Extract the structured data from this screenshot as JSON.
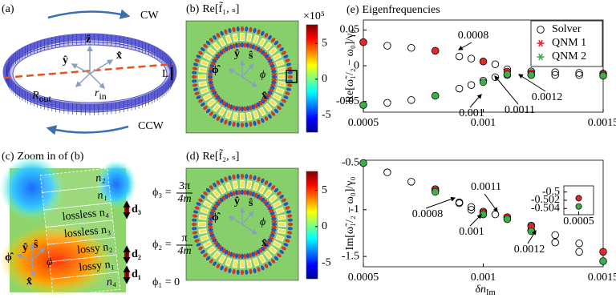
{
  "panel_a": {
    "label": "(a)",
    "cw": "CW",
    "ccw": "CCW",
    "l": "L",
    "z": "ẑ",
    "y": "ŷ",
    "x": "x̂",
    "r_out": "R",
    "r_out_sub": "out",
    "r_in": "r",
    "r_in_sub": "in"
  },
  "panel_b": {
    "label": "(b)",
    "title": "Re[f̃₁, ₛ]",
    "colorbar_exponent": "×10⁵",
    "colorbar_lim": [
      -7.4,
      7.6
    ],
    "colorbar_ticks": [
      5,
      0,
      -5
    ],
    "phi_hat": "ϕ̂",
    "y": "ŷ",
    "s": "ŝ",
    "phi": "ϕ",
    "x": "x̂"
  },
  "panel_c": {
    "label": "(c)",
    "title": "Zoom in of (b)",
    "layers": [
      "n₂",
      "n₁",
      "lossless n₄",
      "lossless n₃",
      "lossy n₂",
      "lossy n₁",
      "n₄"
    ],
    "phi3": "ϕ₃ =",
    "phi3_num": "3π",
    "phi3_den": "4m",
    "d3": "d₃",
    "phi2": "ϕ₂ =",
    "phi2_num": "π",
    "phi2_den": "4m",
    "d2": "d₂",
    "d1": "d₁",
    "phi1": "ϕ₁ = 0",
    "phi_hat": "ϕ̂",
    "y": "ŷ",
    "s": "ŝ",
    "phi": "ϕ",
    "x": "x̂"
  },
  "panel_d": {
    "label": "(d)",
    "title": "Re[f̃₂, ₛ]",
    "colorbar_lim": [
      -7.2,
      7.6
    ],
    "colorbar_ticks": [
      5,
      0,
      -5
    ],
    "phi_hat": "ϕ̂",
    "y": "ŷ",
    "s": "ŝ",
    "phi": "ϕ",
    "x": "x̂"
  },
  "panel_e": {
    "label": "(e)",
    "title": "Eigenfrequencies"
  },
  "chart_data": [
    {
      "type": "scatter",
      "y_label": "Re[ω̃₁/₂ − ω₀]/γ₀",
      "xlim": [
        0.0005,
        0.0015
      ],
      "xticks": [
        0.0005,
        0.001,
        0.0015
      ],
      "ylim": [
        -0.065,
        0.064
      ],
      "yticks": [
        0.05,
        0,
        -0.05
      ],
      "legend": "upper right",
      "series": [
        {
          "name": "Solver",
          "color": "#000000",
          "marker": "open",
          "x": [
            0.0005,
            0.0006,
            0.0007,
            0.0008,
            0.0009,
            0.00095,
            0.001,
            0.00105,
            0.0011,
            0.0012,
            0.0013,
            0.0014,
            0.0015,
            0.0005,
            0.0006,
            0.0007,
            0.0008,
            0.0009,
            0.00095,
            0.001,
            0.00105,
            0.0011,
            0.0012,
            0.0013,
            0.0014,
            0.0015
          ],
          "values": [
            0.033,
            0.028,
            0.025,
            0.021,
            0.013,
            0.01,
            0.006,
            0.002,
            -0.005,
            -0.008,
            -0.009,
            -0.01,
            -0.011,
            -0.055,
            -0.052,
            -0.048,
            -0.042,
            -0.032,
            -0.027,
            -0.021,
            -0.016,
            -0.013,
            -0.013,
            -0.013,
            -0.013,
            -0.014
          ]
        },
        {
          "name": "QNM 1",
          "color": "#e8262a",
          "marker": "filled",
          "x": [
            0.0005,
            0.0008,
            0.001,
            0.0011,
            0.0012,
            0.0015
          ],
          "values": [
            0.033,
            0.021,
            0.006,
            -0.008,
            -0.01,
            -0.012
          ]
        },
        {
          "name": "QNM 2",
          "color": "#3cae4a",
          "marker": "filled",
          "x": [
            0.0005,
            0.0008,
            0.001,
            0.0011,
            0.0012,
            0.0015
          ],
          "values": [
            -0.055,
            -0.042,
            -0.023,
            -0.012,
            -0.013,
            -0.014
          ]
        }
      ],
      "annotations": [
        "0.0008",
        "0.001",
        "0.0011",
        "0.0012"
      ]
    },
    {
      "type": "scatter",
      "y_label": "Im[ω̃₁/₂ − ω₀]/γ₀",
      "x_label": "δn",
      "x_label_sub": "Im",
      "xlim": [
        0.0005,
        0.0015
      ],
      "xticks": [
        0.0005,
        0.001,
        0.0015
      ],
      "ylim": [
        -1.61,
        -0.47
      ],
      "yticks": [
        -0.5,
        -1,
        -1.5
      ],
      "series": [
        {
          "color": "#000000",
          "marker": "open",
          "x": [
            0.0005,
            0.0006,
            0.0007,
            0.0008,
            0.0009,
            0.00095,
            0.001,
            0.00105,
            0.0011,
            0.0012,
            0.0013,
            0.0014,
            0.0015,
            0.0008,
            0.0009,
            0.00095,
            0.001,
            0.0011,
            0.0012,
            0.0013,
            0.0014,
            0.0015
          ],
          "values": [
            -0.5,
            -0.6,
            -0.7,
            -0.78,
            -0.92,
            -0.97,
            -1.02,
            -1.05,
            -1.08,
            -1.17,
            -1.27,
            -1.36,
            -1.45,
            -0.8,
            -0.93,
            -1,
            -1.05,
            -1.1,
            -1.22,
            -1.35,
            -1.45,
            -1.55
          ]
        },
        {
          "color": "#e8262a",
          "marker": "filled",
          "x": [
            0.0005,
            0.0008,
            0.001,
            0.0011,
            0.0012,
            0.0015
          ],
          "values": [
            -0.5,
            -0.79,
            -1.03,
            -1.08,
            -1.18,
            -1.45
          ]
        },
        {
          "color": "#3cae4a",
          "marker": "filled",
          "x": [
            0.0005,
            0.0008,
            0.001,
            0.0011,
            0.0012,
            0.0015
          ],
          "values": [
            -0.5,
            -0.81,
            -1.05,
            -1.1,
            -1.23,
            -1.55
          ]
        }
      ],
      "annotations": [
        "0.0011",
        "0.0008",
        "0.001",
        "0.0012"
      ]
    },
    {
      "type": "scatter",
      "xlim": [
        0.0004,
        0.0006
      ],
      "xticks": [
        0.0005
      ],
      "ylim": [
        -0.5055,
        -0.4985
      ],
      "yticks": [
        -0.5,
        -0.502,
        -0.504
      ],
      "series": [
        {
          "color": "#e8262a",
          "marker": "filled",
          "x": [
            0.0005
          ],
          "values": [
            -0.5015
          ]
        },
        {
          "color": "#3cae4a",
          "marker": "filled",
          "x": [
            0.0005
          ],
          "values": [
            -0.5035
          ]
        }
      ]
    }
  ]
}
